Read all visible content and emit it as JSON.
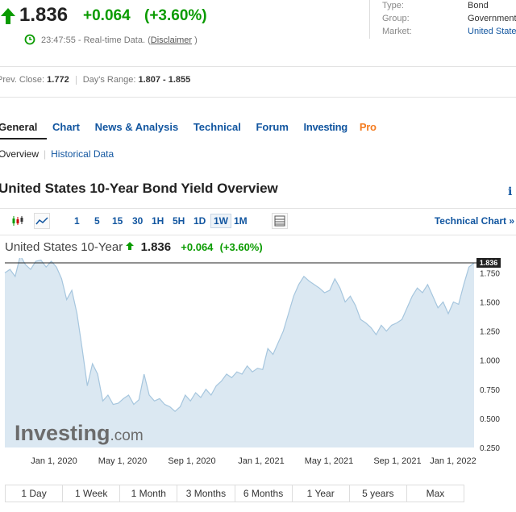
{
  "quote": {
    "price": "1.836",
    "change": "+0.064",
    "change_pct": "(+3.60%)",
    "time": "23:47:55",
    "realtime_label": "- Real-time Data. (",
    "disclaimer": "Disclaimer",
    "close_paren": ")"
  },
  "info": {
    "type_label": "Type:",
    "type_value": "Bond",
    "group_label": "Group:",
    "group_value": "Government",
    "market_label": "Market:",
    "market_value": "United State"
  },
  "stats": {
    "prev_close_label": "Prev. Close:",
    "prev_close": "1.772",
    "range_label": "Day's Range:",
    "range": "1.807 - 1.855"
  },
  "tabs": [
    "General",
    "Chart",
    "News & Analysis",
    "Technical",
    "Forum"
  ],
  "investing_pro": {
    "a": "Investing",
    "b": "Pro"
  },
  "subtabs": {
    "overview": "Overview",
    "historical": "Historical Data"
  },
  "page_title": "United States 10-Year Bond Yield Overview",
  "info_icon": "i",
  "toolbar": {
    "intervals": [
      "1",
      "5",
      "15",
      "30",
      "1H",
      "5H",
      "1D",
      "1W",
      "1M"
    ],
    "selected": "1W",
    "technical_chart": "Technical Chart »",
    "icons": [
      "candlestick-icon",
      "line-chart-icon",
      "table-icon"
    ]
  },
  "chart_header": {
    "name": "United States 10-Year",
    "value": "1.836",
    "change": "+0.064",
    "pct": "(+3.60%)"
  },
  "chart_data": {
    "type": "area",
    "x_ticks": [
      "Jan 1, 2020",
      "May 1, 2020",
      "Sep 1, 2020",
      "Jan 1, 2021",
      "May 1, 2021",
      "Sep 1, 2021",
      "Jan 1, 2022"
    ],
    "y_ticks": [
      "1.750",
      "1.500",
      "1.250",
      "1.000",
      "0.750",
      "0.500",
      "0.250"
    ],
    "y_range": [
      0.25,
      1.85
    ],
    "last_price_label": "1.836",
    "watermark": "Investing",
    "watermark_suffix": ".com",
    "colors": {
      "fill": "#dbe8f2",
      "line": "#a6c6de",
      "price_line": "#222222"
    },
    "values": [
      1.75,
      1.78,
      1.72,
      1.9,
      1.82,
      1.78,
      1.85,
      1.86,
      1.8,
      1.85,
      1.8,
      1.7,
      1.52,
      1.6,
      1.4,
      1.1,
      0.78,
      0.97,
      0.88,
      0.65,
      0.7,
      0.62,
      0.63,
      0.67,
      0.7,
      0.62,
      0.66,
      0.88,
      0.7,
      0.65,
      0.67,
      0.62,
      0.6,
      0.56,
      0.6,
      0.7,
      0.65,
      0.72,
      0.68,
      0.75,
      0.7,
      0.78,
      0.82,
      0.88,
      0.85,
      0.9,
      0.88,
      0.95,
      0.9,
      0.93,
      0.92,
      1.1,
      1.05,
      1.15,
      1.25,
      1.4,
      1.55,
      1.65,
      1.72,
      1.68,
      1.65,
      1.62,
      1.58,
      1.6,
      1.7,
      1.62,
      1.5,
      1.55,
      1.47,
      1.35,
      1.32,
      1.28,
      1.22,
      1.3,
      1.25,
      1.3,
      1.32,
      1.35,
      1.45,
      1.55,
      1.62,
      1.58,
      1.65,
      1.55,
      1.45,
      1.5,
      1.4,
      1.5,
      1.48,
      1.65,
      1.8,
      1.836
    ]
  },
  "ranges": [
    "1 Day",
    "1 Week",
    "1 Month",
    "3 Months",
    "6 Months",
    "1 Year",
    "5 years",
    "Max"
  ]
}
